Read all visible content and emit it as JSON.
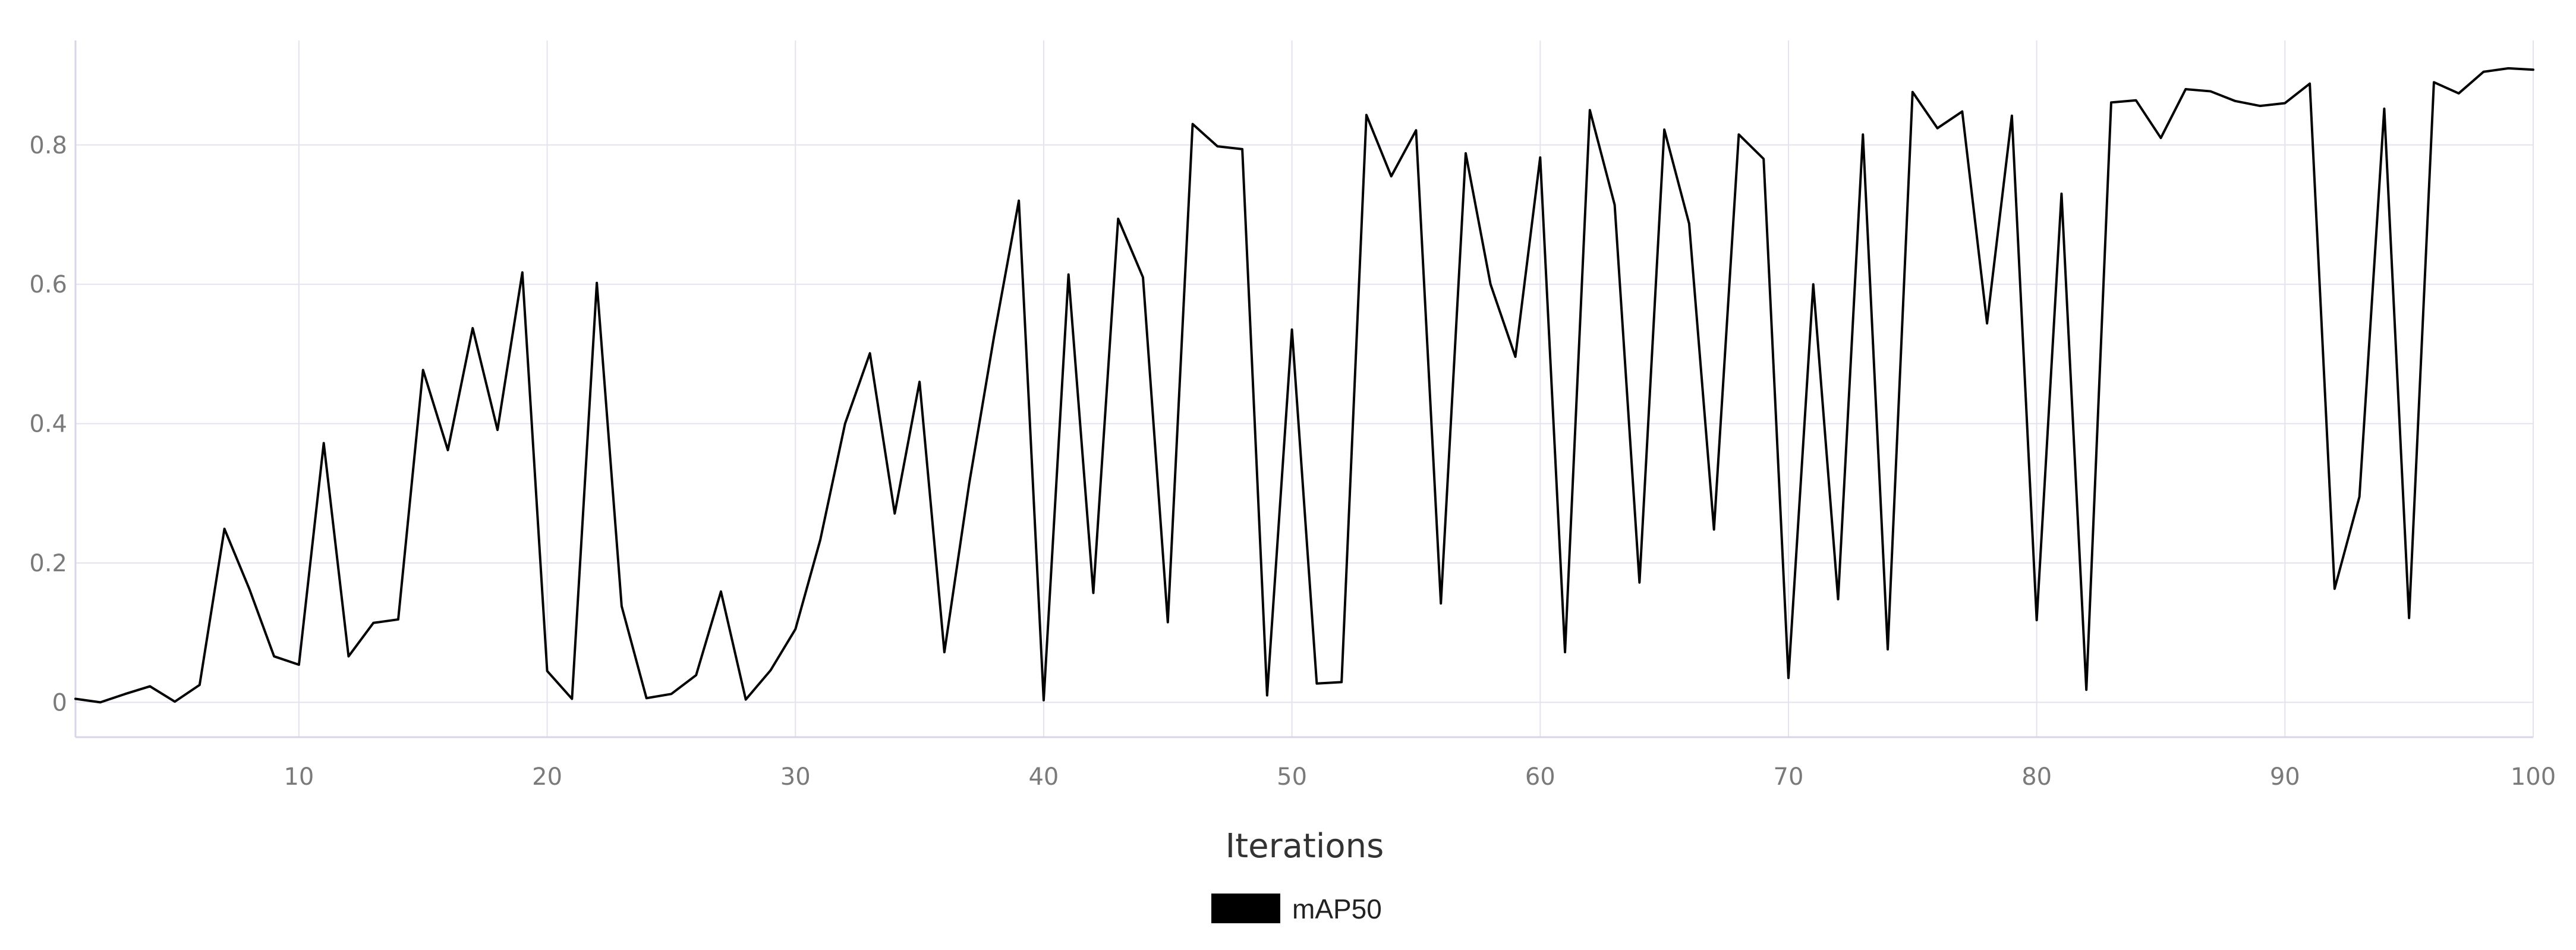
{
  "chart_data": {
    "type": "line",
    "xlabel": "Iterations",
    "ylabel": "",
    "xlim": [
      1,
      100
    ],
    "ylim": [
      -0.05,
      0.95
    ],
    "x_ticks": [
      10,
      20,
      30,
      40,
      50,
      60,
      70,
      80,
      90,
      100
    ],
    "y_ticks": [
      0,
      0.2,
      0.4,
      0.6,
      0.8
    ],
    "grid": true,
    "legend_position": "bottom-center",
    "series": [
      {
        "name": "mAP50",
        "color": "#000000",
        "x": [
          1,
          2,
          3,
          4,
          5,
          6,
          7,
          8,
          9,
          10,
          11,
          12,
          13,
          14,
          15,
          16,
          17,
          18,
          19,
          20,
          21,
          22,
          23,
          24,
          25,
          26,
          27,
          28,
          29,
          30,
          31,
          32,
          33,
          34,
          35,
          36,
          37,
          38,
          39,
          40,
          41,
          42,
          43,
          44,
          45,
          46,
          47,
          48,
          49,
          50,
          51,
          52,
          53,
          54,
          55,
          56,
          57,
          58,
          59,
          60,
          61,
          62,
          63,
          64,
          65,
          66,
          67,
          68,
          69,
          70,
          71,
          72,
          73,
          74,
          75,
          76,
          77,
          78,
          79,
          80,
          81,
          82,
          83,
          84,
          85,
          86,
          87,
          88,
          89,
          90,
          91,
          92,
          93,
          94,
          95,
          96,
          97,
          98,
          99,
          100
        ],
        "values": [
          0.005,
          0.0,
          0.012,
          0.023,
          0.001,
          0.025,
          0.249,
          0.163,
          0.066,
          0.054,
          0.372,
          0.066,
          0.114,
          0.119,
          0.477,
          0.362,
          0.537,
          0.391,
          0.617,
          0.045,
          0.005,
          0.602,
          0.138,
          0.006,
          0.012,
          0.039,
          0.159,
          0.004,
          0.046,
          0.105,
          0.233,
          0.4,
          0.501,
          0.271,
          0.46,
          0.072,
          0.314,
          0.525,
          0.72,
          0.003,
          0.614,
          0.157,
          0.694,
          0.61,
          0.115,
          0.83,
          0.798,
          0.794,
          0.01,
          0.535,
          0.027,
          0.029,
          0.843,
          0.755,
          0.821,
          0.142,
          0.788,
          0.6,
          0.496,
          0.782,
          0.072,
          0.85,
          0.714,
          0.172,
          0.822,
          0.687,
          0.248,
          0.815,
          0.78,
          0.035,
          0.6,
          0.148,
          0.815,
          0.076,
          0.876,
          0.824,
          0.848,
          0.544,
          0.842,
          0.118,
          0.73,
          0.018,
          0.861,
          0.864,
          0.81,
          0.88,
          0.877,
          0.863,
          0.856,
          0.86,
          0.888,
          0.163,
          0.295,
          0.852,
          0.121,
          0.89,
          0.874,
          0.905,
          0.91,
          0.908
        ]
      }
    ]
  }
}
